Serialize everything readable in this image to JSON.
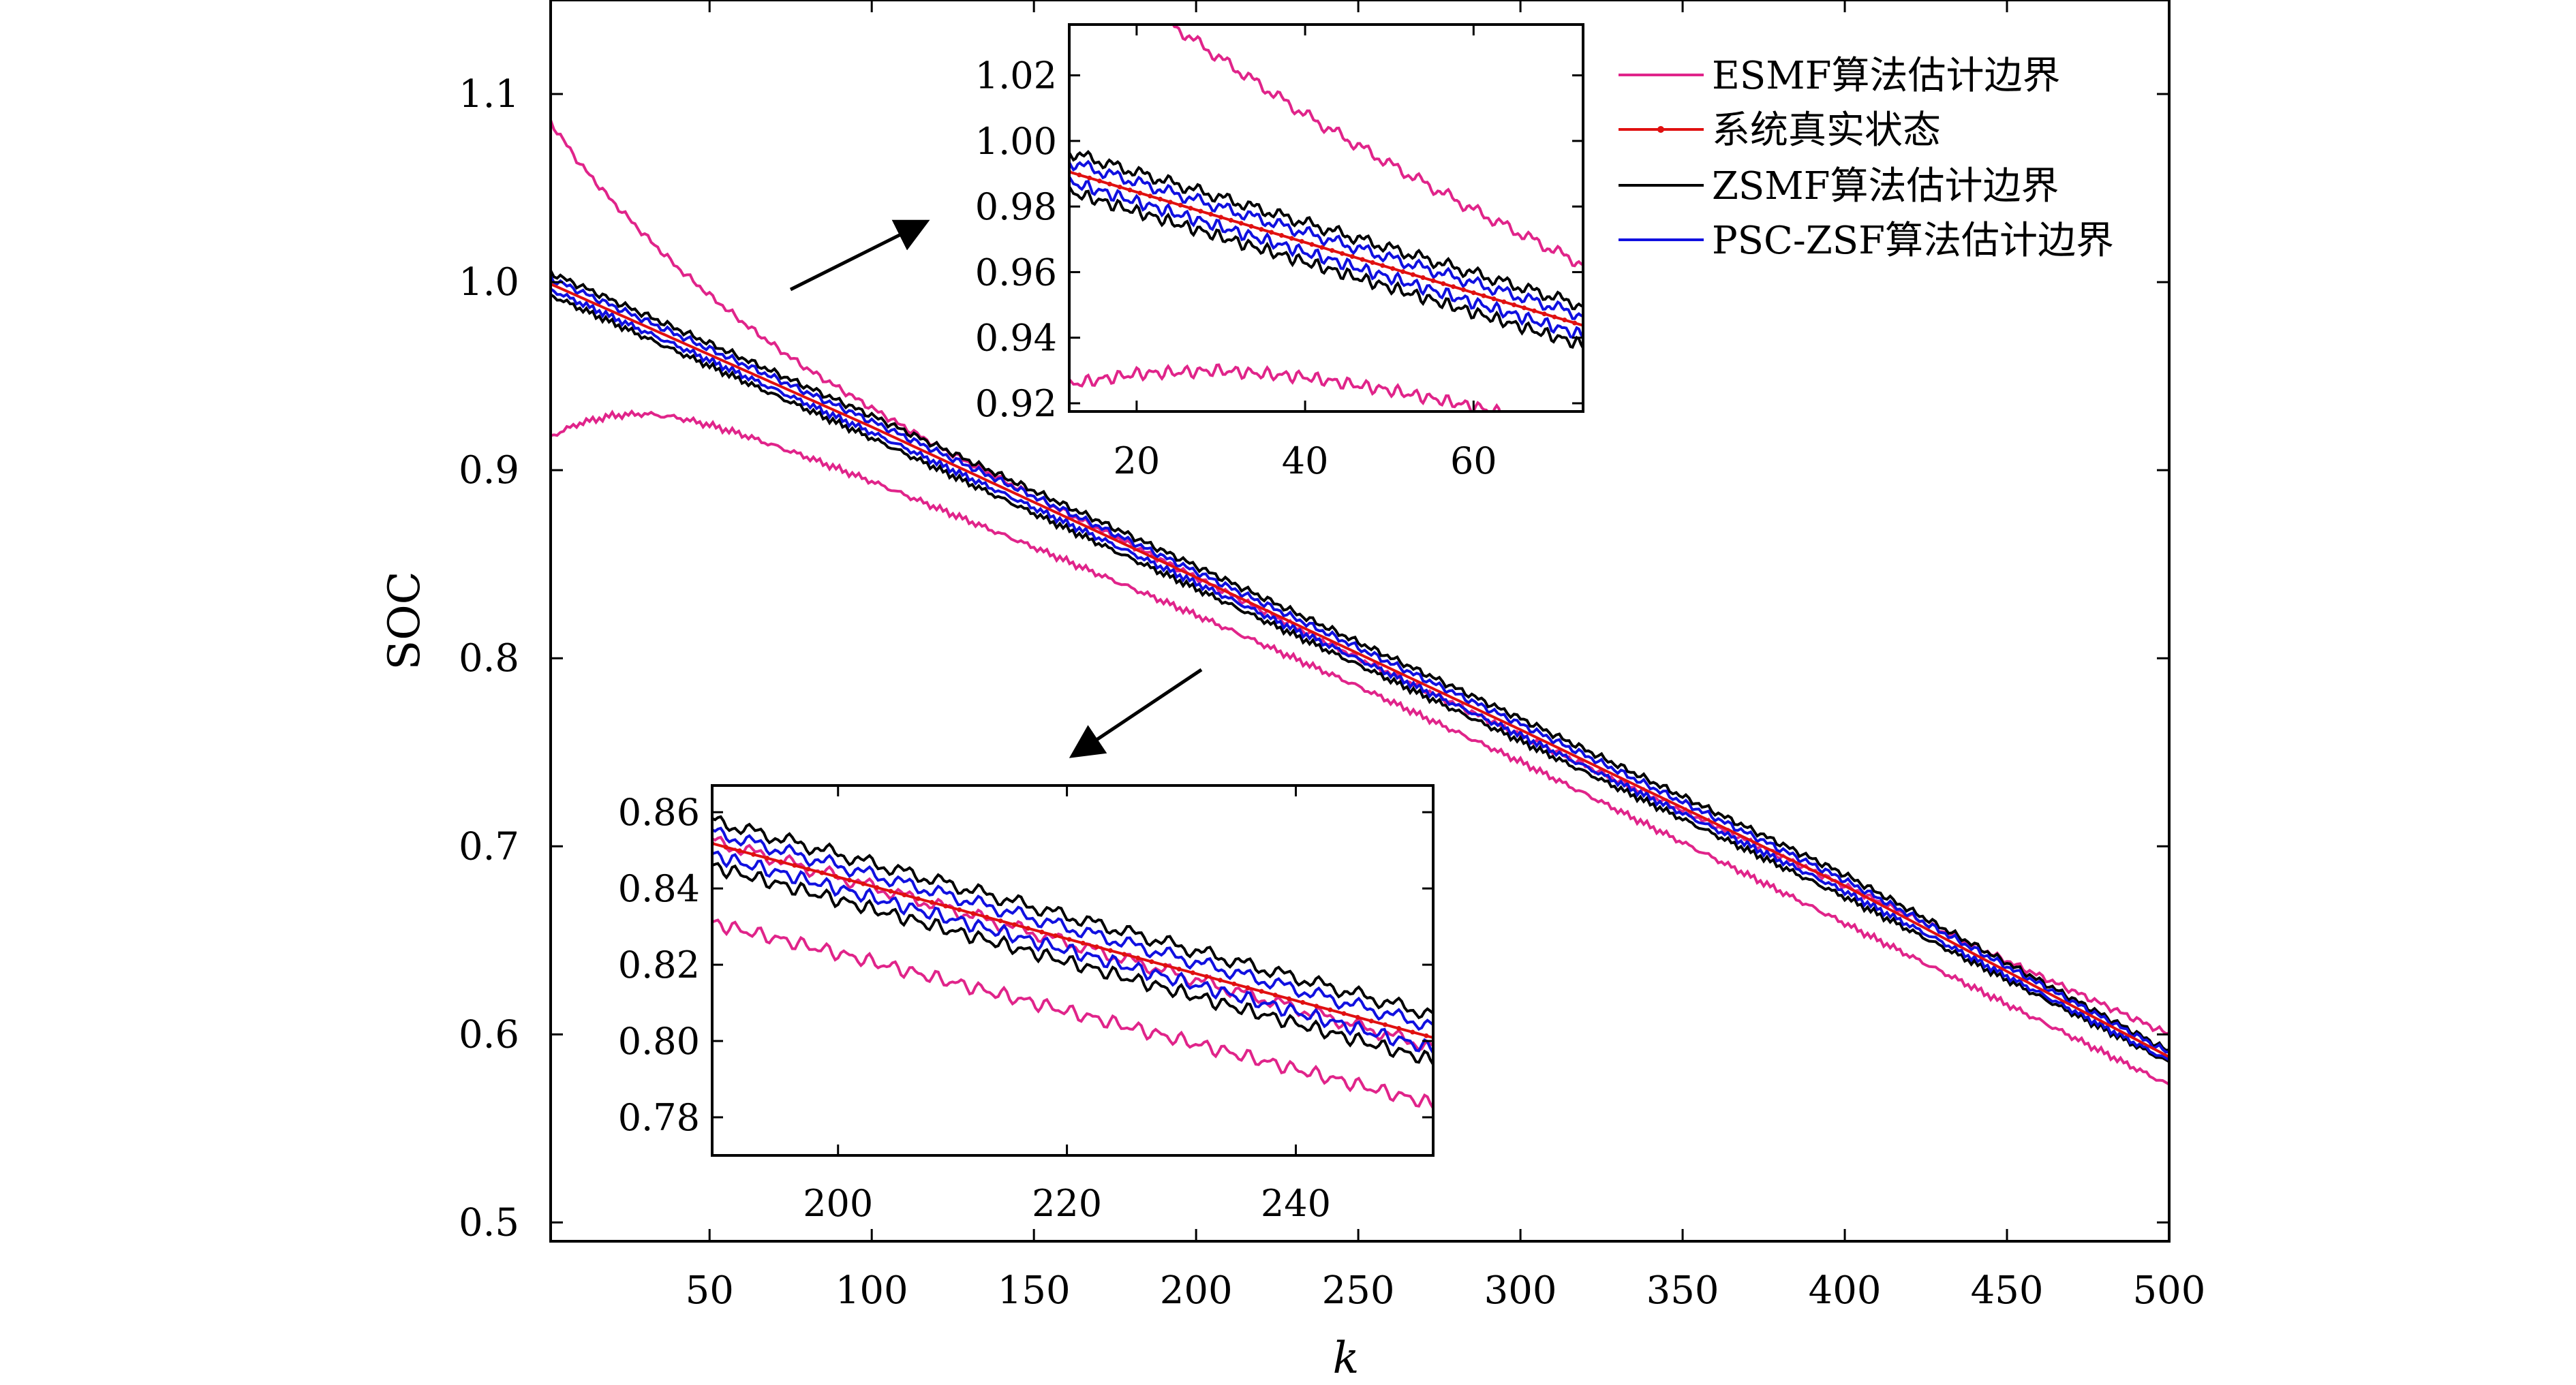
{
  "chart_data": {
    "type": "line",
    "xlabel": "k",
    "ylabel": "SOC",
    "xlim": [
      1,
      500
    ],
    "ylim": [
      0.49,
      1.15
    ],
    "xticks": [
      50,
      100,
      150,
      200,
      250,
      300,
      350,
      400,
      450,
      500
    ],
    "yticks": [
      0.5,
      0.6,
      0.7,
      0.8,
      0.9,
      1.0,
      1.1
    ],
    "ytick_labels": [
      "0.5",
      "0.6",
      "0.7",
      "0.8",
      "0.9",
      "1.0",
      "1.1"
    ],
    "legend_position": "top-right",
    "series": [
      {
        "name": "ESMF算法估计边界",
        "color": "#e0248a",
        "role": "upper",
        "x": [
          1,
          10,
          20,
          30,
          40,
          50,
          60,
          70,
          80,
          100,
          120,
          150,
          200,
          250,
          300,
          350,
          400,
          450,
          500
        ],
        "y": [
          1.085,
          1.063,
          1.043,
          1.025,
          1.008,
          0.993,
          0.979,
          0.966,
          0.954,
          0.933,
          0.913,
          0.886,
          0.843,
          0.8,
          0.759,
          0.719,
          0.679,
          0.639,
          0.6
        ]
      },
      {
        "name": "ESMF算法估计边界",
        "color": "#e0248a",
        "role": "lower",
        "x": [
          1,
          10,
          20,
          30,
          40,
          50,
          60,
          70,
          80,
          100,
          120,
          150,
          200,
          250,
          300,
          350,
          400,
          450,
          500
        ],
        "y": [
          0.918,
          0.925,
          0.929,
          0.93,
          0.928,
          0.924,
          0.919,
          0.913,
          0.907,
          0.894,
          0.88,
          0.859,
          0.823,
          0.785,
          0.745,
          0.702,
          0.659,
          0.616,
          0.573
        ]
      },
      {
        "name": "ZSMF算法估计边界",
        "color": "#000000",
        "role": "upper",
        "x": [
          1,
          100,
          200,
          300,
          400,
          500
        ],
        "y": [
          1.005,
          0.929,
          0.849,
          0.768,
          0.685,
          0.591
        ]
      },
      {
        "name": "ZSMF算法估计边界",
        "color": "#000000",
        "role": "lower",
        "x": [
          1,
          100,
          200,
          300,
          400,
          500
        ],
        "y": [
          0.993,
          0.917,
          0.837,
          0.756,
          0.673,
          0.585
        ]
      },
      {
        "name": "PSC-ZSF算法估计边界",
        "color": "#1010e0",
        "role": "upper",
        "x": [
          1,
          100,
          200,
          300,
          400,
          500
        ],
        "y": [
          1.002,
          0.926,
          0.846,
          0.765,
          0.682,
          0.59
        ]
      },
      {
        "name": "PSC-ZSF算法估计边界",
        "color": "#1010e0",
        "role": "lower",
        "x": [
          1,
          100,
          200,
          300,
          400,
          500
        ],
        "y": [
          0.996,
          0.92,
          0.84,
          0.759,
          0.676,
          0.586
        ]
      },
      {
        "name": "系统真实状态",
        "color": "#e01010",
        "role": "truth",
        "x": [
          1,
          100,
          200,
          300,
          400,
          500
        ],
        "y": [
          0.999,
          0.923,
          0.843,
          0.762,
          0.679,
          0.588
        ]
      }
    ],
    "insets": [
      {
        "id": "inset-top",
        "xlim": [
          12,
          73
        ],
        "ylim": [
          0.9175,
          1.0355
        ],
        "xticks": [
          20,
          40,
          60
        ],
        "xtick_labels": [
          "20",
          "40",
          "60"
        ],
        "yticks": [
          0.92,
          0.94,
          0.96,
          0.98,
          1.0,
          1.02
        ],
        "ytick_labels": [
          "0.92",
          "0.94",
          "0.96",
          "0.98",
          "1.00",
          "1.02"
        ]
      },
      {
        "id": "inset-bottom",
        "xlim": [
          189,
          252
        ],
        "ylim": [
          0.77,
          0.867
        ],
        "xticks": [
          200,
          220,
          240
        ],
        "xtick_labels": [
          "200",
          "220",
          "240"
        ],
        "yticks": [
          0.78,
          0.8,
          0.82,
          0.84,
          0.86
        ],
        "ytick_labels": [
          "0.78",
          "0.80",
          "0.82",
          "0.84",
          "0.86"
        ]
      }
    ],
    "legend": [
      "ESMF算法估计边界",
      "系统真实状态",
      "ZSMF算法估计边界",
      "PSC-ZSF算法估计边界"
    ]
  }
}
